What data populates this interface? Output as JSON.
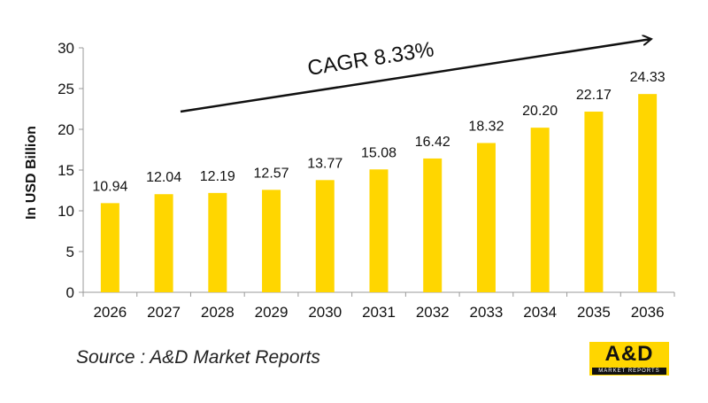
{
  "chart_data": {
    "type": "bar",
    "categories": [
      "2026",
      "2027",
      "2028",
      "2029",
      "2030",
      "2031",
      "2032",
      "2033",
      "2034",
      "2035",
      "2036"
    ],
    "values": [
      10.94,
      12.04,
      12.19,
      12.57,
      13.77,
      15.08,
      16.42,
      18.32,
      20.2,
      22.17,
      24.33
    ],
    "value_labels": [
      "10.94",
      "12.04",
      "12.19",
      "12.57",
      "13.77",
      "15.08",
      "16.42",
      "18.32",
      "20.20",
      "22.17",
      "24.33"
    ],
    "ylabel": "In USD Billion",
    "ylim": [
      0,
      30
    ],
    "yticks": [
      0,
      5,
      10,
      15,
      20,
      25,
      30
    ],
    "grid": false,
    "bar_color": "#FFD600",
    "annotation": "CAGR 8.33%"
  },
  "source": "Source : A&D Market Reports",
  "logo": {
    "main": "A&D",
    "sub": "MARKET REPORTS",
    "color": "#FFD600"
  }
}
